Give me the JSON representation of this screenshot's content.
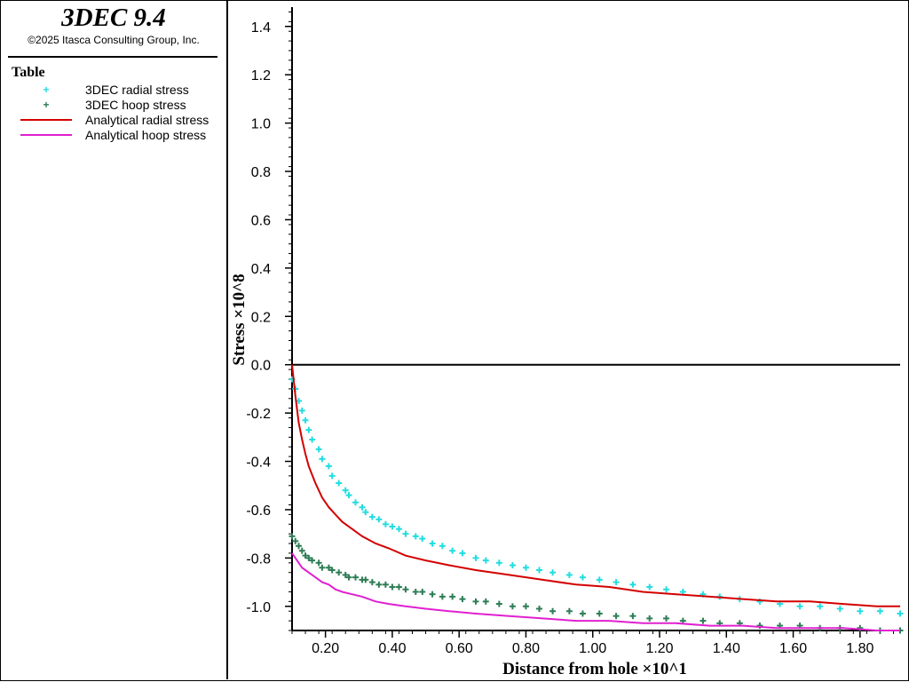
{
  "app": {
    "title": "3DEC 9.4",
    "copyright": "©2025 Itasca Consulting Group, Inc."
  },
  "legend": {
    "title": "Table",
    "items": [
      {
        "label": "3DEC radial stress",
        "kind": "marker",
        "color": "#22dde0",
        "icon": "plus-marker-icon"
      },
      {
        "label": "3DEC hoop stress",
        "kind": "marker",
        "color": "#2e7d56",
        "icon": "plus-marker-icon"
      },
      {
        "label": "Analytical radial stress",
        "kind": "line",
        "color": "#d40000",
        "icon": "line-swatch-icon"
      },
      {
        "label": "Analytical hoop stress",
        "kind": "line",
        "color": "#e020d0",
        "icon": "line-swatch-icon"
      }
    ]
  },
  "chart_data": {
    "type": "scatter",
    "xlabel": "Distance from hole ×10^1",
    "ylabel": "Stress ×10^8",
    "xlim": [
      0.1,
      1.92
    ],
    "ylim": [
      -1.1,
      1.48
    ],
    "x_ticks": [
      "0.20",
      "0.40",
      "0.60",
      "0.80",
      "1.00",
      "1.20",
      "1.40",
      "1.60",
      "1.80"
    ],
    "y_ticks": [
      "1.4",
      "1.2",
      "1.0",
      "0.8",
      "0.6",
      "0.4",
      "0.2",
      "0.0",
      "-0.2",
      "-0.4",
      "-0.6",
      "-0.8",
      "-1.0"
    ],
    "x_tick_values": [
      0.2,
      0.4,
      0.6,
      0.8,
      1.0,
      1.2,
      1.4,
      1.6,
      1.8
    ],
    "y_tick_values": [
      1.4,
      1.2,
      1.0,
      0.8,
      0.6,
      0.4,
      0.2,
      0.0,
      -0.2,
      -0.4,
      -0.6,
      -0.8,
      -1.0
    ],
    "zero_line": true,
    "series": [
      {
        "name": "3DEC radial stress",
        "style": "plus",
        "color": "#22dde0",
        "x": [
          0.1,
          0.11,
          0.12,
          0.13,
          0.14,
          0.15,
          0.16,
          0.18,
          0.19,
          0.21,
          0.22,
          0.24,
          0.26,
          0.27,
          0.29,
          0.31,
          0.32,
          0.34,
          0.36,
          0.38,
          0.4,
          0.42,
          0.44,
          0.47,
          0.49,
          0.52,
          0.55,
          0.58,
          0.61,
          0.65,
          0.68,
          0.72,
          0.76,
          0.8,
          0.84,
          0.88,
          0.93,
          0.97,
          1.02,
          1.07,
          1.12,
          1.17,
          1.22,
          1.27,
          1.33,
          1.38,
          1.44,
          1.5,
          1.56,
          1.62,
          1.68,
          1.74,
          1.8,
          1.86,
          1.92
        ],
        "y": [
          -0.06,
          -0.1,
          -0.15,
          -0.19,
          -0.23,
          -0.27,
          -0.31,
          -0.35,
          -0.39,
          -0.42,
          -0.46,
          -0.49,
          -0.52,
          -0.54,
          -0.57,
          -0.59,
          -0.61,
          -0.63,
          -0.64,
          -0.66,
          -0.67,
          -0.68,
          -0.7,
          -0.71,
          -0.72,
          -0.74,
          -0.75,
          -0.77,
          -0.78,
          -0.8,
          -0.81,
          -0.82,
          -0.83,
          -0.84,
          -0.85,
          -0.86,
          -0.87,
          -0.88,
          -0.89,
          -0.9,
          -0.91,
          -0.92,
          -0.93,
          -0.94,
          -0.95,
          -0.96,
          -0.97,
          -0.98,
          -0.99,
          -1.0,
          -1.0,
          -1.01,
          -1.02,
          -1.02,
          -1.03
        ]
      },
      {
        "name": "3DEC hoop stress",
        "style": "plus",
        "color": "#2e7d56",
        "x": [
          0.1,
          0.11,
          0.12,
          0.13,
          0.14,
          0.15,
          0.16,
          0.18,
          0.19,
          0.21,
          0.22,
          0.24,
          0.26,
          0.27,
          0.29,
          0.31,
          0.32,
          0.34,
          0.36,
          0.38,
          0.4,
          0.42,
          0.44,
          0.47,
          0.49,
          0.52,
          0.55,
          0.58,
          0.61,
          0.65,
          0.68,
          0.72,
          0.76,
          0.8,
          0.84,
          0.88,
          0.93,
          0.97,
          1.02,
          1.07,
          1.12,
          1.17,
          1.22,
          1.27,
          1.33,
          1.38,
          1.44,
          1.5,
          1.56,
          1.62,
          1.68,
          1.74,
          1.8,
          1.86,
          1.92
        ],
        "y": [
          -0.71,
          -0.73,
          -0.75,
          -0.77,
          -0.79,
          -0.8,
          -0.81,
          -0.82,
          -0.84,
          -0.84,
          -0.85,
          -0.86,
          -0.87,
          -0.88,
          -0.88,
          -0.89,
          -0.89,
          -0.9,
          -0.91,
          -0.91,
          -0.92,
          -0.92,
          -0.93,
          -0.94,
          -0.94,
          -0.95,
          -0.96,
          -0.96,
          -0.97,
          -0.98,
          -0.98,
          -0.99,
          -1.0,
          -1.0,
          -1.01,
          -1.02,
          -1.02,
          -1.03,
          -1.03,
          -1.04,
          -1.04,
          -1.05,
          -1.05,
          -1.06,
          -1.06,
          -1.07,
          -1.07,
          -1.08,
          -1.08,
          -1.08,
          -1.09,
          -1.09,
          -1.09,
          -1.1,
          -1.1
        ]
      },
      {
        "name": "Analytical radial stress",
        "style": "line",
        "color": "#d40000",
        "x": [
          0.1,
          0.11,
          0.12,
          0.13,
          0.14,
          0.15,
          0.17,
          0.19,
          0.21,
          0.23,
          0.25,
          0.28,
          0.31,
          0.35,
          0.39,
          0.44,
          0.5,
          0.57,
          0.65,
          0.75,
          0.85,
          0.95,
          1.05,
          1.15,
          1.25,
          1.35,
          1.45,
          1.55,
          1.65,
          1.75,
          1.85,
          1.92
        ],
        "y": [
          0.0,
          -0.13,
          -0.24,
          -0.31,
          -0.37,
          -0.42,
          -0.49,
          -0.55,
          -0.59,
          -0.62,
          -0.65,
          -0.68,
          -0.71,
          -0.74,
          -0.76,
          -0.79,
          -0.81,
          -0.83,
          -0.85,
          -0.87,
          -0.89,
          -0.91,
          -0.92,
          -0.94,
          -0.95,
          -0.96,
          -0.97,
          -0.98,
          -0.98,
          -0.99,
          -1.0,
          -1.0
        ]
      },
      {
        "name": "Analytical hoop stress",
        "style": "line",
        "color": "#e020d0",
        "x": [
          0.1,
          0.11,
          0.12,
          0.13,
          0.14,
          0.15,
          0.17,
          0.19,
          0.21,
          0.23,
          0.25,
          0.28,
          0.31,
          0.35,
          0.39,
          0.44,
          0.5,
          0.57,
          0.65,
          0.75,
          0.85,
          0.95,
          1.05,
          1.15,
          1.25,
          1.35,
          1.45,
          1.55,
          1.65,
          1.75,
          1.85,
          1.92
        ],
        "y": [
          -0.78,
          -0.8,
          -0.82,
          -0.84,
          -0.85,
          -0.86,
          -0.88,
          -0.9,
          -0.91,
          -0.93,
          -0.94,
          -0.95,
          -0.96,
          -0.98,
          -0.99,
          -1.0,
          -1.01,
          -1.02,
          -1.03,
          -1.04,
          -1.05,
          -1.06,
          -1.06,
          -1.07,
          -1.07,
          -1.08,
          -1.08,
          -1.09,
          -1.09,
          -1.09,
          -1.1,
          -1.1
        ]
      }
    ]
  }
}
